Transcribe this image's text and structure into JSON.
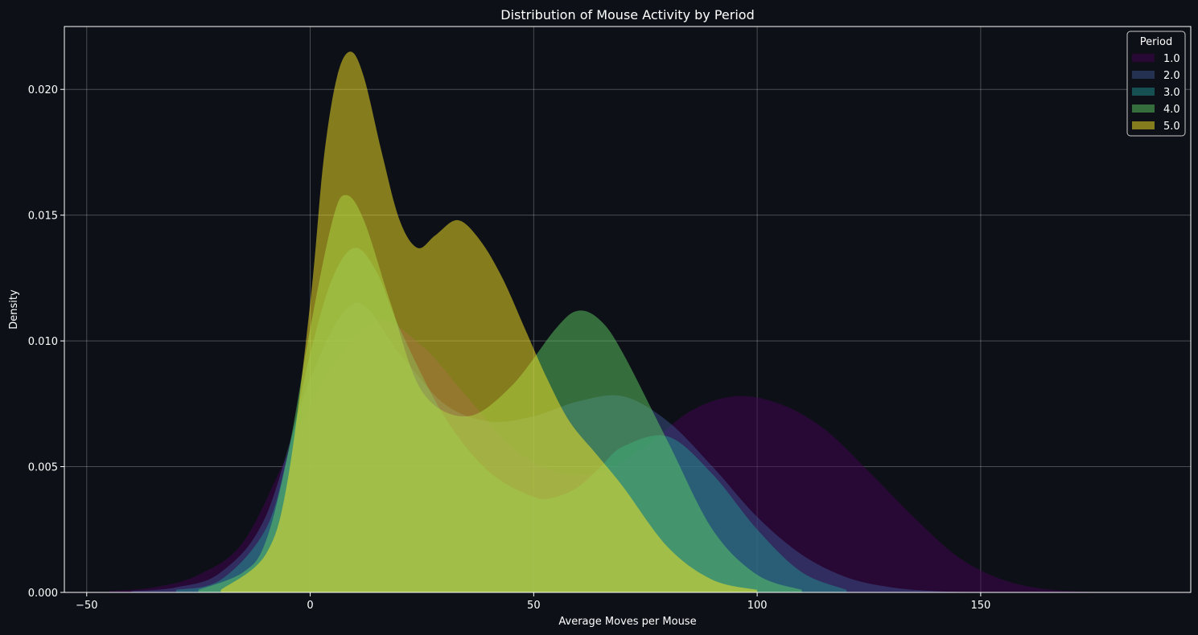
{
  "chart_data": {
    "type": "area",
    "title": "Distribution of Mouse Activity by Period",
    "xlabel": "Average Moves per Mouse",
    "ylabel": "Density",
    "xlim": [
      -55,
      197
    ],
    "ylim": [
      0,
      0.0225
    ],
    "xticks": [
      -50,
      0,
      50,
      100,
      150
    ],
    "xtick_labels": [
      "−50",
      "0",
      "50",
      "100",
      "150"
    ],
    "yticks": [
      0.0,
      0.005,
      0.01,
      0.015,
      0.02
    ],
    "ytick_labels": [
      "0.000",
      "0.005",
      "0.010",
      "0.015",
      "0.020"
    ],
    "grid": true,
    "legend": {
      "title": "Period",
      "position": "top-right"
    },
    "series": [
      {
        "name": "1.0",
        "color": "#440154",
        "x": [
          -45,
          -35,
          -25,
          -15,
          -5,
          5,
          15,
          25,
          35,
          45,
          55,
          65,
          75,
          85,
          95,
          105,
          115,
          125,
          135,
          145,
          155,
          165,
          175
        ],
        "y": [
          5e-05,
          0.0002,
          0.0007,
          0.002,
          0.0055,
          0.009,
          0.0108,
          0.0098,
          0.0078,
          0.0058,
          0.0048,
          0.0048,
          0.0058,
          0.0072,
          0.0078,
          0.0075,
          0.0065,
          0.0048,
          0.003,
          0.0014,
          0.0005,
          0.00012,
          2e-05
        ]
      },
      {
        "name": "2.0",
        "color": "#3b528b",
        "x": [
          -40,
          -30,
          -20,
          -10,
          0,
          10,
          20,
          30,
          40,
          50,
          60,
          70,
          80,
          90,
          100,
          110,
          120,
          130,
          140,
          150
        ],
        "y": [
          5e-05,
          0.0002,
          0.0008,
          0.003,
          0.0085,
          0.0115,
          0.0095,
          0.0075,
          0.0068,
          0.007,
          0.0076,
          0.0078,
          0.0068,
          0.005,
          0.003,
          0.0015,
          0.0006,
          0.0002,
          5e-05,
          1e-05
        ]
      },
      {
        "name": "3.0",
        "color": "#21908d",
        "x": [
          -30,
          -20,
          -10,
          -5,
          0,
          5,
          10,
          15,
          20,
          30,
          40,
          50,
          55,
          60,
          65,
          70,
          80,
          90,
          100,
          110,
          120
        ],
        "y": [
          0.0001,
          0.0005,
          0.0025,
          0.0055,
          0.0095,
          0.0125,
          0.0137,
          0.0127,
          0.0105,
          0.007,
          0.0048,
          0.0038,
          0.0038,
          0.0042,
          0.005,
          0.0058,
          0.0062,
          0.0047,
          0.0025,
          0.0008,
          0.0001
        ]
      },
      {
        "name": "4.0",
        "color": "#5dc963",
        "x": [
          -25,
          -15,
          -10,
          -5,
          0,
          5,
          8,
          12,
          18,
          25,
          35,
          45,
          55,
          60,
          65,
          70,
          80,
          90,
          100,
          110
        ],
        "y": [
          0.0001,
          0.0008,
          0.002,
          0.0055,
          0.0105,
          0.0148,
          0.0158,
          0.0148,
          0.0115,
          0.008,
          0.007,
          0.0082,
          0.0105,
          0.0112,
          0.0108,
          0.0095,
          0.006,
          0.0025,
          0.0007,
          0.0001
        ]
      },
      {
        "name": "5.0",
        "color": "#fde725",
        "x": [
          -20,
          -10,
          -5,
          0,
          3,
          6,
          9,
          12,
          16,
          20,
          24,
          28,
          33,
          38,
          43,
          48,
          53,
          58,
          64,
          70,
          80,
          90,
          100
        ],
        "y": [
          0.0001,
          0.0015,
          0.0045,
          0.0115,
          0.0172,
          0.0205,
          0.0215,
          0.0205,
          0.0175,
          0.0148,
          0.0137,
          0.0142,
          0.0148,
          0.014,
          0.0125,
          0.0105,
          0.0085,
          0.0068,
          0.0055,
          0.0042,
          0.0018,
          0.0005,
          0.0001
        ]
      }
    ]
  }
}
